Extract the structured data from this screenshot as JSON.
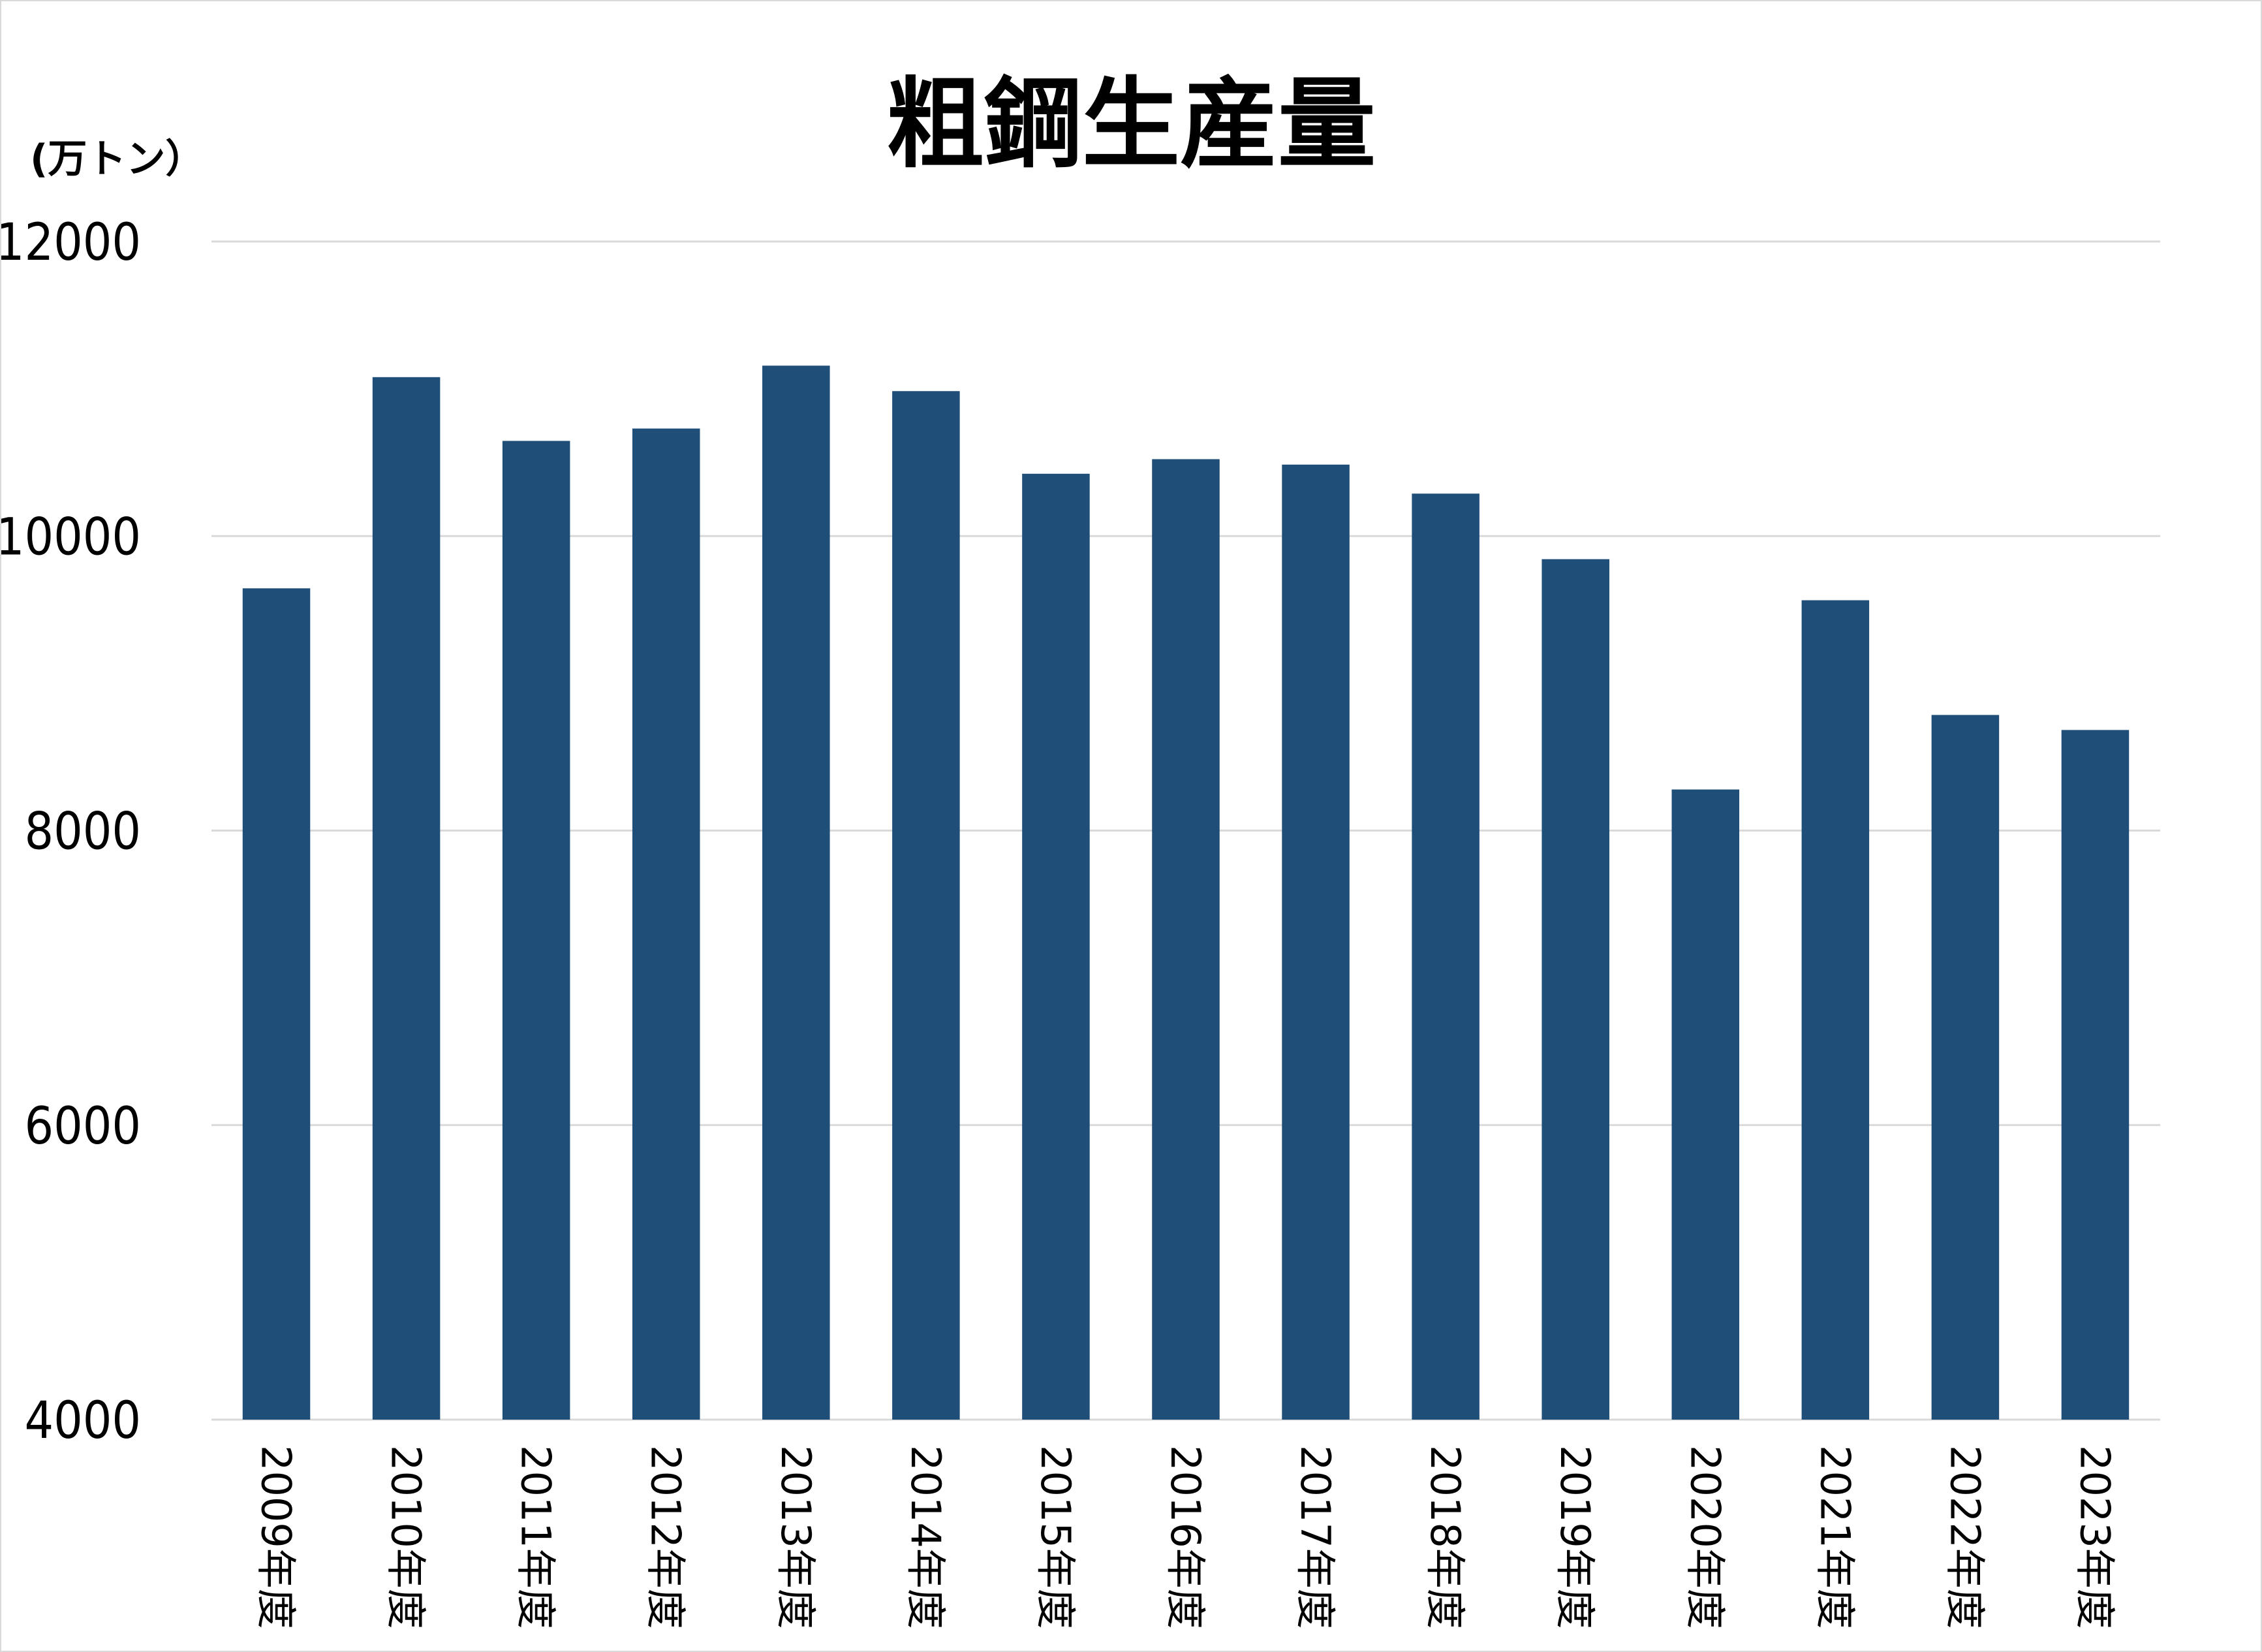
{
  "chart_data": {
    "type": "bar",
    "title": "粗鋼生産量",
    "unit_label": "(万トン）",
    "xlabel": "",
    "ylabel": "",
    "ylim": [
      4000,
      12000
    ],
    "yticks": [
      4000,
      6000,
      8000,
      10000,
      12000
    ],
    "grid": true,
    "legend": "none",
    "bar_color": "#1f4e79",
    "categories": [
      "2009年度",
      "2010年度",
      "2011年度",
      "2012年度",
      "2013年度",
      "2014年度",
      "2015年度",
      "2016年度",
      "2017年度",
      "2018年度",
      "2019年度",
      "2020年度",
      "2021年度",
      "2022年度",
      "2023年度"
    ],
    "values": [
      9645,
      11079,
      10646,
      10730,
      11157,
      10984,
      10423,
      10522,
      10485,
      10288,
      9843,
      8279,
      9564,
      8785,
      8683
    ]
  }
}
